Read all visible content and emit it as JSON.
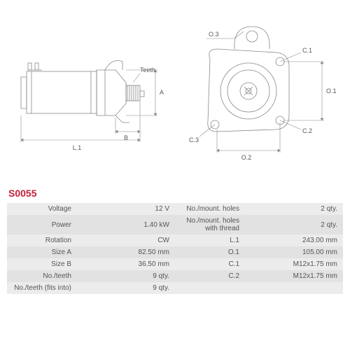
{
  "part_id": "S0055",
  "diagram": {
    "left_view": {
      "labels": {
        "L1": "L.1",
        "B": "B",
        "A": "A",
        "Teeth": "Teeth"
      }
    },
    "right_view": {
      "labels": {
        "O1": "O.1",
        "O2": "O.2",
        "O3": "O.3",
        "C1": "C.1",
        "C2": "C.2",
        "C3": "C.3"
      }
    },
    "stroke_color": "#888888",
    "stroke_width": 0.8,
    "text_color": "#555555"
  },
  "specs_left": [
    {
      "label": "Voltage",
      "value": "12 V"
    },
    {
      "label": "Power",
      "value": "1.40 kW"
    },
    {
      "label": "Rotation",
      "value": "CW"
    },
    {
      "label": "Size A",
      "value": "82.50 mm"
    },
    {
      "label": "Size B",
      "value": "36.50 mm"
    },
    {
      "label": "No./teeth",
      "value": "9 qty."
    },
    {
      "label": "No./teeth (fits into)",
      "value": "9 qty."
    }
  ],
  "specs_right": [
    {
      "label": "No./mount. holes",
      "value": "2 qty."
    },
    {
      "label": "No./mount. holes with thread",
      "value": "2 qty."
    },
    {
      "label": "L.1",
      "value": "243.00 mm"
    },
    {
      "label": "O.1",
      "value": "105.00 mm"
    },
    {
      "label": "C.1",
      "value": "M12x1.75 mm"
    },
    {
      "label": "C.2",
      "value": "M12x1.75 mm"
    },
    {
      "label": "",
      "value": ""
    }
  ],
  "colors": {
    "accent": "#c41e3a",
    "row_odd": "#ececec",
    "row_even": "#e2e2e2",
    "text": "#555555"
  }
}
